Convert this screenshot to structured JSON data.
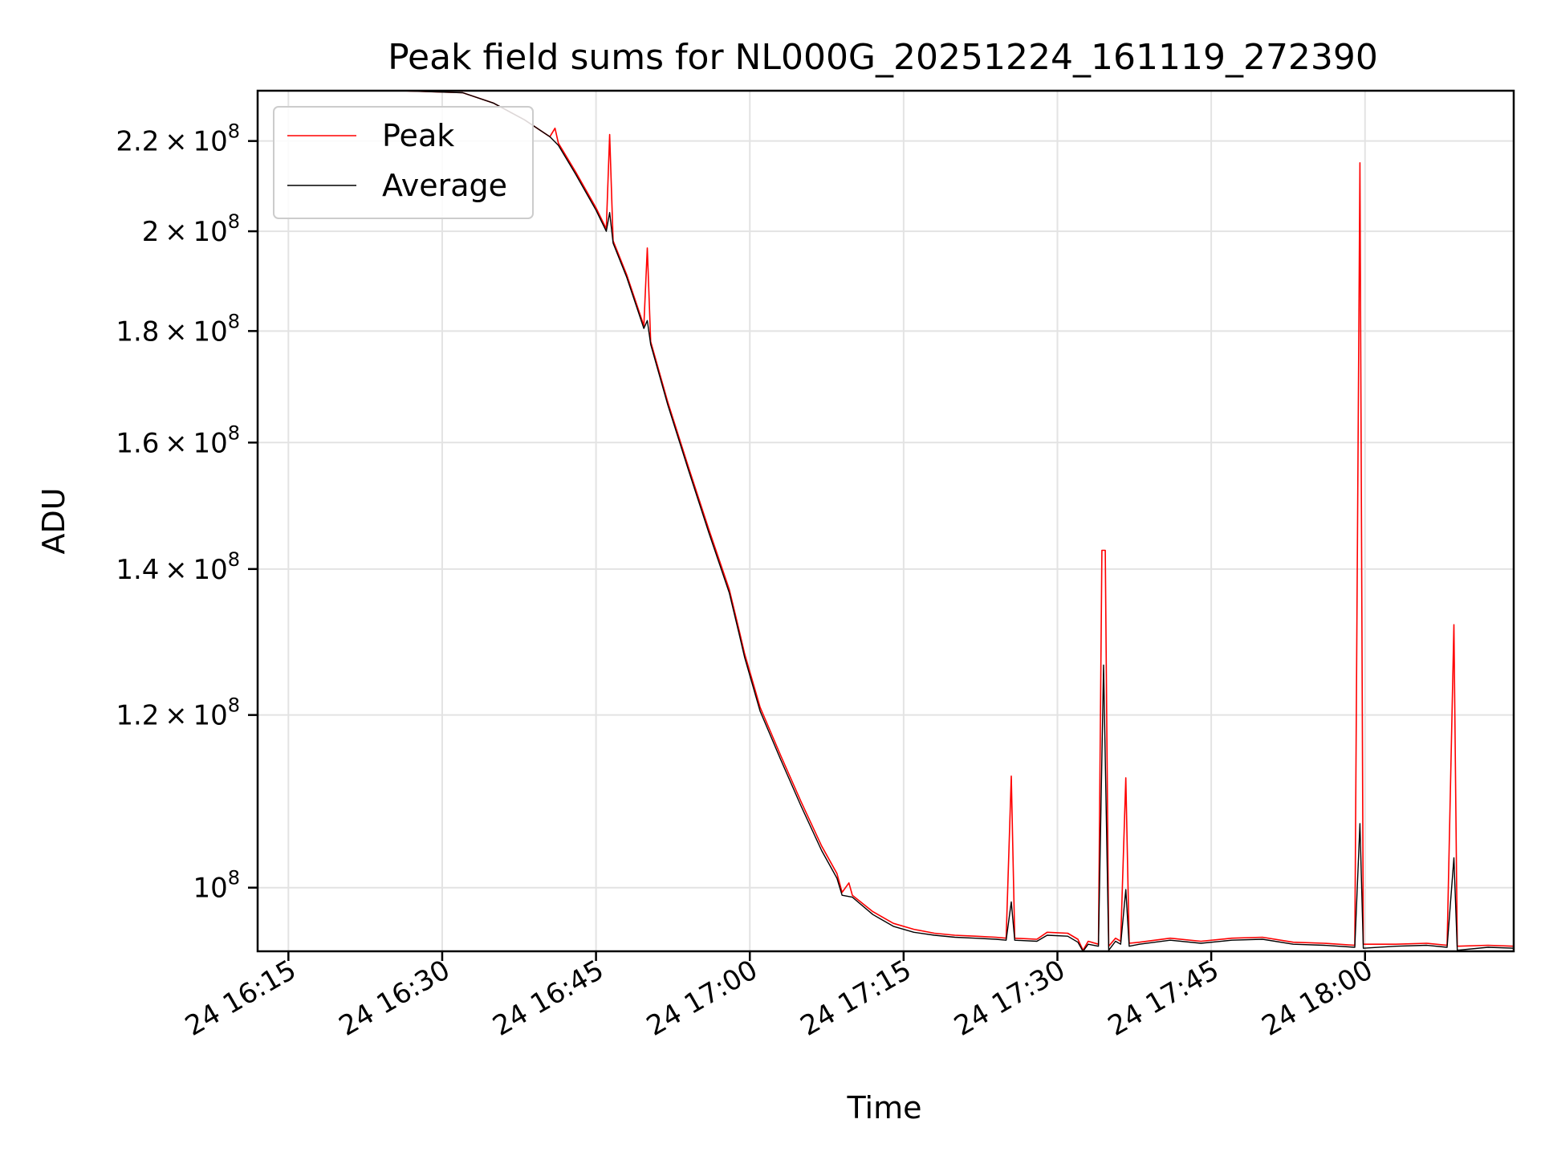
{
  "chart_data": {
    "type": "line",
    "title": "Peak field sums for NL000G_20251224_161119_272390",
    "xlabel": "Time",
    "ylabel": "ADU",
    "yscale": "log",
    "ylim": [
      93500000,
      232000000
    ],
    "x_ticks": [
      "24 16:15",
      "24 16:30",
      "24 16:45",
      "24 17:00",
      "24 17:15",
      "24 17:30",
      "24 17:45",
      "24 18:00"
    ],
    "y_ticks": [
      {
        "value": 100000000,
        "mantissa": "",
        "exp": "8"
      },
      {
        "value": 120000000,
        "mantissa": "1.2",
        "exp": "8"
      },
      {
        "value": 140000000,
        "mantissa": "1.4",
        "exp": "8"
      },
      {
        "value": 160000000,
        "mantissa": "1.6",
        "exp": "8"
      },
      {
        "value": 180000000,
        "mantissa": "1.8",
        "exp": "8"
      },
      {
        "value": 200000000,
        "mantissa": "2",
        "exp": "8"
      },
      {
        "value": 220000000,
        "mantissa": "2.2",
        "exp": "8"
      }
    ],
    "grid": true,
    "legend_position": "top-left",
    "series": [
      {
        "name": "Peak",
        "color": "#ff0000",
        "points": [
          [
            "16:26:00",
            232000000
          ],
          [
            "16:32:00",
            231500000
          ],
          [
            "16:35:00",
            229000000
          ],
          [
            "16:38:00",
            225000000
          ],
          [
            "16:40:30",
            221000000
          ],
          [
            "16:41:00",
            223000000
          ],
          [
            "16:41:20",
            219500000
          ],
          [
            "16:43:00",
            213000000
          ],
          [
            "16:45:00",
            205000000
          ],
          [
            "16:46:00",
            200500000
          ],
          [
            "16:46:20",
            221500000
          ],
          [
            "16:46:40",
            198000000
          ],
          [
            "16:48:00",
            191000000
          ],
          [
            "16:49:40",
            181000000
          ],
          [
            "16:50:00",
            196500000
          ],
          [
            "16:50:20",
            178000000
          ],
          [
            "16:52:00",
            167000000
          ],
          [
            "16:54:00",
            156000000
          ],
          [
            "16:56:00",
            146000000
          ],
          [
            "16:58:00",
            137000000
          ],
          [
            "16:59:00",
            131000000
          ],
          [
            "16:59:30",
            128000000
          ],
          [
            "17:01:00",
            121000000
          ],
          [
            "17:03:00",
            115000000
          ],
          [
            "17:05:00",
            109500000
          ],
          [
            "17:07:00",
            104500000
          ],
          [
            "17:08:30",
            101500000
          ],
          [
            "17:09:00",
            99500000
          ],
          [
            "17:09:40",
            100500000
          ],
          [
            "17:10:00",
            99200000
          ],
          [
            "17:12:00",
            97500000
          ],
          [
            "17:14:00",
            96300000
          ],
          [
            "17:16:00",
            95700000
          ],
          [
            "17:18:00",
            95300000
          ],
          [
            "17:20:00",
            95100000
          ],
          [
            "17:22:00",
            95000000
          ],
          [
            "17:24:00",
            94900000
          ],
          [
            "17:25:00",
            94800000
          ],
          [
            "17:25:30",
            112500000
          ],
          [
            "17:25:50",
            94800000
          ],
          [
            "17:28:00",
            94700000
          ],
          [
            "17:29:00",
            95400000
          ],
          [
            "17:31:00",
            95300000
          ],
          [
            "17:32:00",
            94700000
          ],
          [
            "17:32:30",
            93600000
          ],
          [
            "17:33:00",
            94500000
          ],
          [
            "17:34:00",
            94200000
          ],
          [
            "17:34:20",
            142800000
          ],
          [
            "17:34:40",
            142800000
          ],
          [
            "17:35:00",
            94000000
          ],
          [
            "17:35:40",
            94800000
          ],
          [
            "17:36:10",
            94500000
          ],
          [
            "17:36:40",
            112300000
          ],
          [
            "17:37:00",
            94300000
          ],
          [
            "17:38:00",
            94400000
          ],
          [
            "17:41:00",
            94800000
          ],
          [
            "17:44:00",
            94500000
          ],
          [
            "17:47:00",
            94800000
          ],
          [
            "17:50:00",
            94900000
          ],
          [
            "17:53:00",
            94400000
          ],
          [
            "17:56:00",
            94300000
          ],
          [
            "17:59:00",
            94100000
          ],
          [
            "17:59:30",
            215000000
          ],
          [
            "17:59:50",
            94200000
          ],
          [
            "18:03:00",
            94200000
          ],
          [
            "18:06:00",
            94300000
          ],
          [
            "18:08:00",
            94100000
          ],
          [
            "18:08:40",
            132000000
          ],
          [
            "18:09:00",
            94000000
          ],
          [
            "18:12:00",
            94100000
          ],
          [
            "18:14:30",
            94000000
          ]
        ]
      },
      {
        "name": "Average",
        "color": "#000000",
        "points": [
          [
            "16:26:00",
            232000000
          ],
          [
            "16:32:00",
            231500000
          ],
          [
            "16:35:00",
            229000000
          ],
          [
            "16:38:00",
            225000000
          ],
          [
            "16:40:30",
            221000000
          ],
          [
            "16:41:20",
            219000000
          ],
          [
            "16:43:00",
            212500000
          ],
          [
            "16:45:00",
            204500000
          ],
          [
            "16:46:00",
            200000000
          ],
          [
            "16:46:20",
            204000000
          ],
          [
            "16:46:40",
            197500000
          ],
          [
            "16:48:00",
            190500000
          ],
          [
            "16:49:40",
            180500000
          ],
          [
            "16:50:00",
            182000000
          ],
          [
            "16:50:20",
            177500000
          ],
          [
            "16:52:00",
            166500000
          ],
          [
            "16:54:00",
            155500000
          ],
          [
            "16:56:00",
            145500000
          ],
          [
            "16:58:00",
            136500000
          ],
          [
            "16:59:00",
            130500000
          ],
          [
            "16:59:30",
            127500000
          ],
          [
            "17:01:00",
            120500000
          ],
          [
            "17:03:00",
            114500000
          ],
          [
            "17:05:00",
            109000000
          ],
          [
            "17:07:00",
            104000000
          ],
          [
            "17:08:30",
            101000000
          ],
          [
            "17:09:00",
            99200000
          ],
          [
            "17:10:00",
            99000000
          ],
          [
            "17:12:00",
            97200000
          ],
          [
            "17:14:00",
            96000000
          ],
          [
            "17:16:00",
            95400000
          ],
          [
            "17:18:00",
            95100000
          ],
          [
            "17:20:00",
            94900000
          ],
          [
            "17:22:00",
            94800000
          ],
          [
            "17:24:00",
            94700000
          ],
          [
            "17:25:00",
            94600000
          ],
          [
            "17:25:30",
            98500000
          ],
          [
            "17:25:50",
            94600000
          ],
          [
            "17:28:00",
            94500000
          ],
          [
            "17:29:00",
            95100000
          ],
          [
            "17:31:00",
            95000000
          ],
          [
            "17:32:00",
            94400000
          ],
          [
            "17:32:30",
            93500000
          ],
          [
            "17:33:00",
            94200000
          ],
          [
            "17:34:00",
            94000000
          ],
          [
            "17:34:30",
            126500000
          ],
          [
            "17:35:00",
            93600000
          ],
          [
            "17:35:40",
            94500000
          ],
          [
            "17:36:10",
            94200000
          ],
          [
            "17:36:40",
            99800000
          ],
          [
            "17:37:00",
            94000000
          ],
          [
            "17:38:00",
            94200000
          ],
          [
            "17:41:00",
            94600000
          ],
          [
            "17:44:00",
            94300000
          ],
          [
            "17:47:00",
            94600000
          ],
          [
            "17:50:00",
            94700000
          ],
          [
            "17:53:00",
            94200000
          ],
          [
            "17:56:00",
            94100000
          ],
          [
            "17:59:00",
            93900000
          ],
          [
            "17:59:30",
            107000000
          ],
          [
            "17:59:50",
            93800000
          ],
          [
            "18:03:00",
            94000000
          ],
          [
            "18:06:00",
            94100000
          ],
          [
            "18:08:00",
            93900000
          ],
          [
            "18:08:40",
            103200000
          ],
          [
            "18:09:00",
            93600000
          ],
          [
            "18:12:00",
            93900000
          ],
          [
            "18:14:30",
            93800000
          ]
        ]
      }
    ]
  }
}
